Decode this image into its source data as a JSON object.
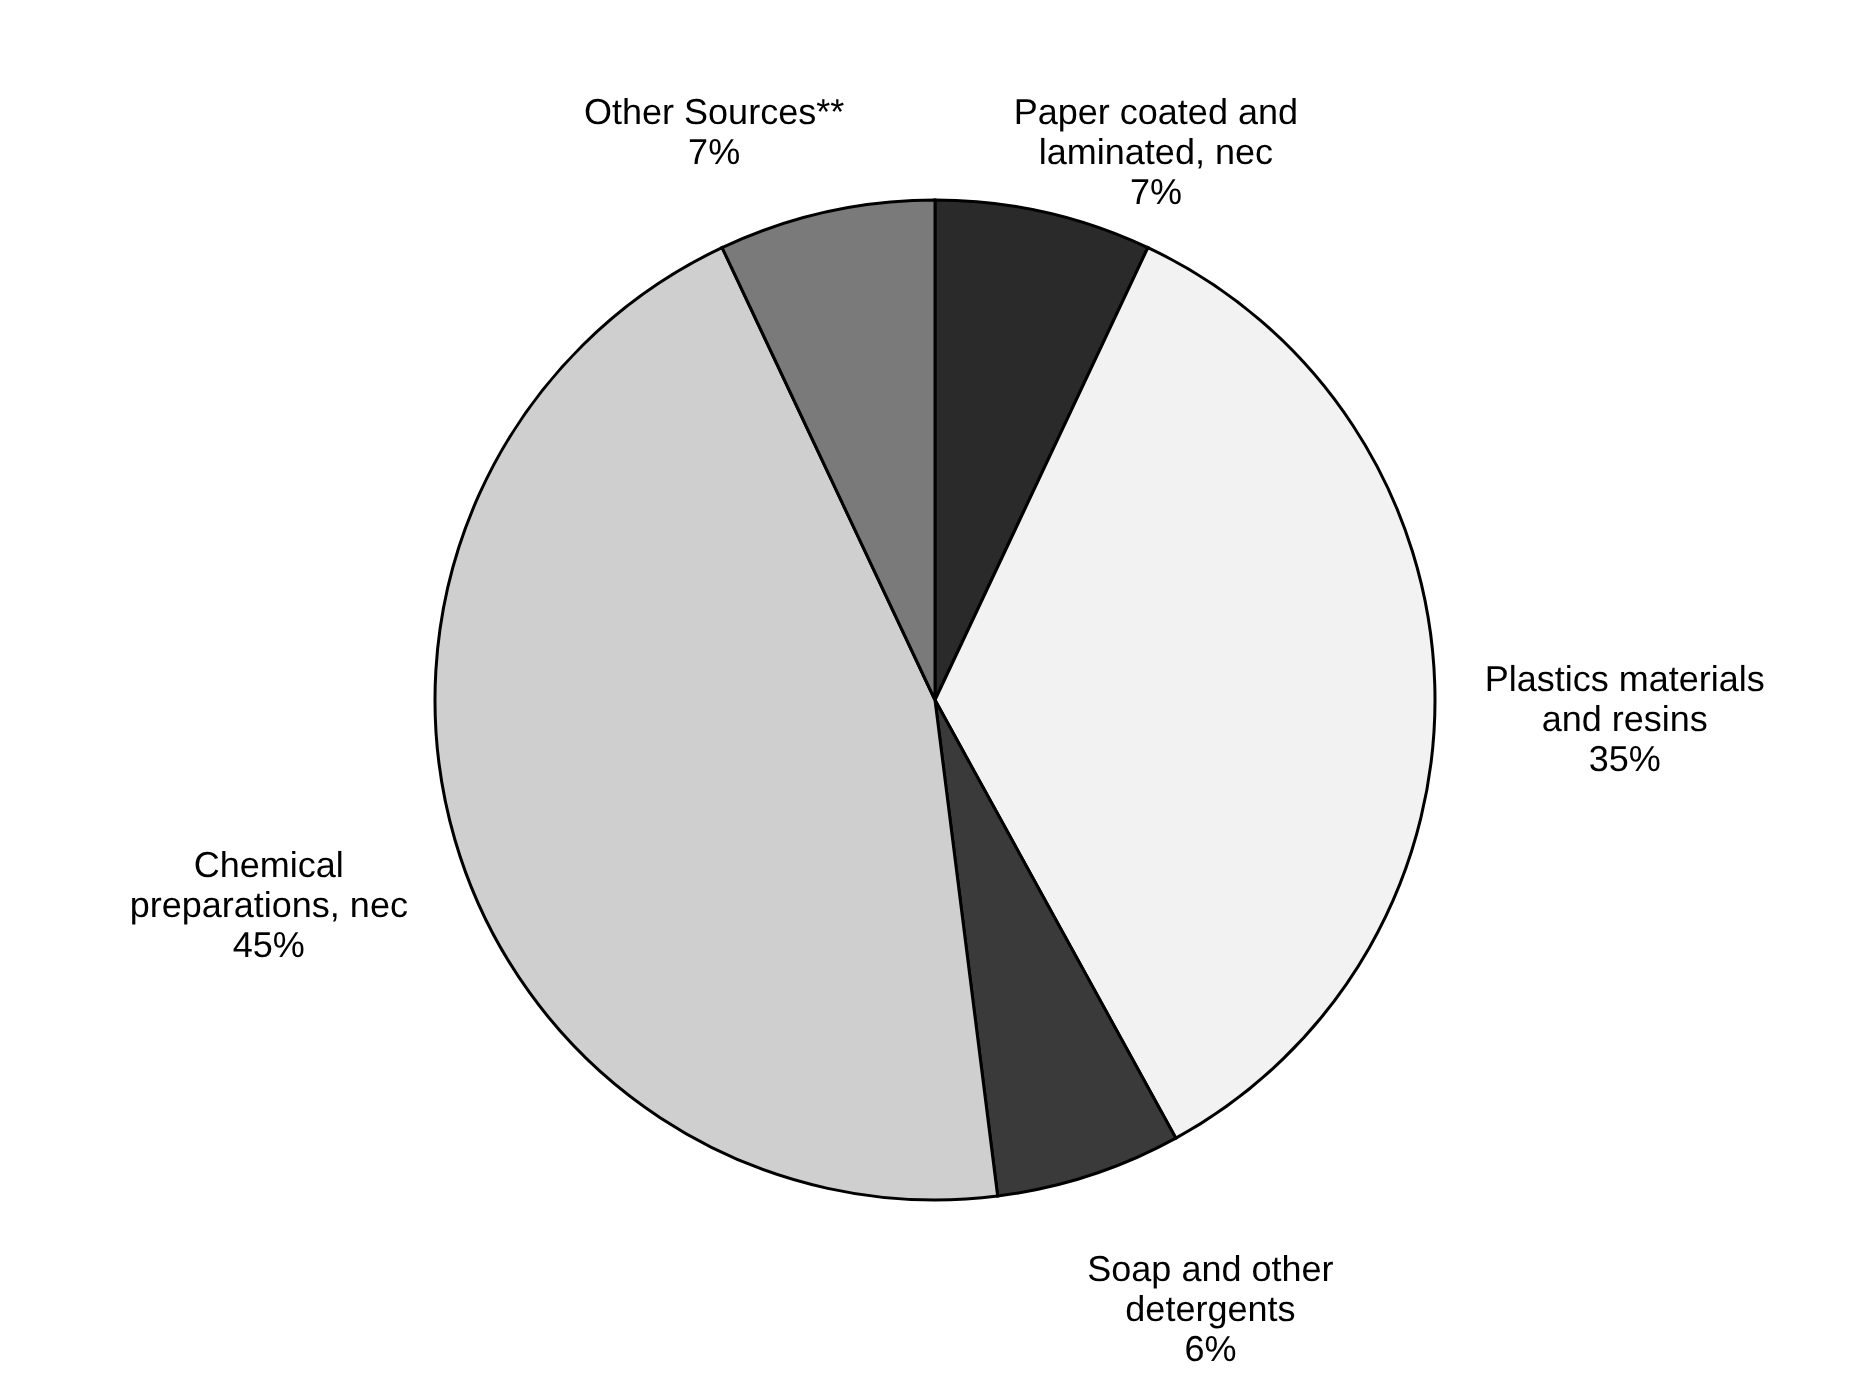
{
  "chart_data": {
    "type": "pie",
    "categories": [
      "Paper coated and laminated, nec",
      "Plastics materials and resins",
      "Soap and other detergents",
      "Chemical preparations, nec",
      "Other Sources**"
    ],
    "values": [
      7,
      35,
      6,
      45,
      7
    ],
    "colors": [
      "#2a2a2a",
      "#f2f2f2",
      "#3a3a3a",
      "#cfcfcf",
      "#7a7a7a"
    ],
    "value_labels": [
      "7%",
      "35%",
      "6%",
      "45%",
      "7%"
    ],
    "legend": false
  }
}
